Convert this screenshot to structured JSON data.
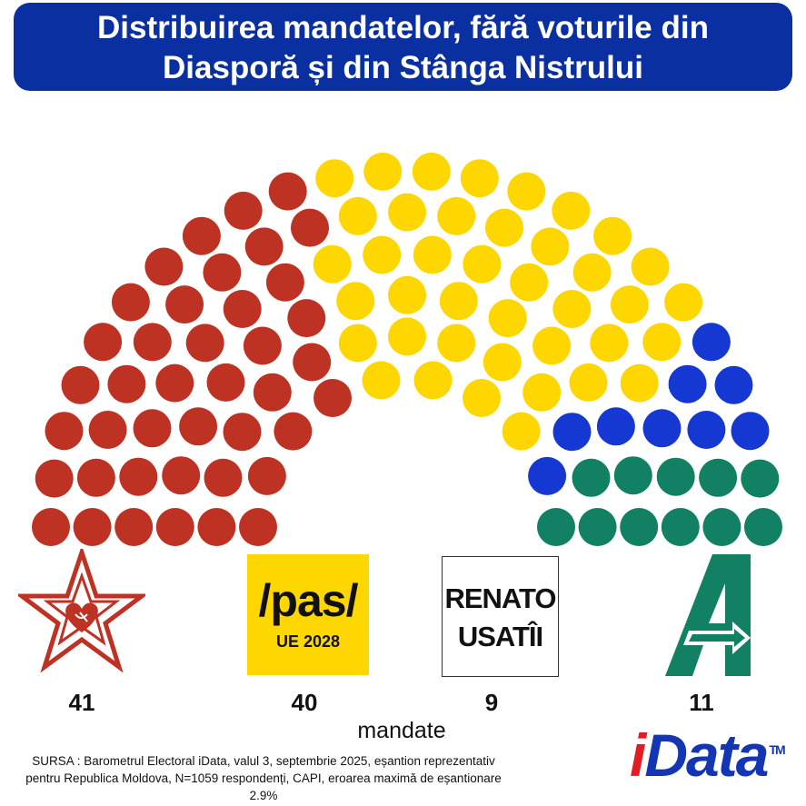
{
  "header": {
    "title_line1": "Distribuirea mandatelor, fără voturile din",
    "title_line2": "Diasporă și din Stânga Nistrului"
  },
  "chart_data": {
    "type": "hemicycle",
    "title": "Distribuirea mandatelor, fără voturile din Diasporă și din Stânga Nistrului",
    "unit_label": "mandate",
    "total_seats": 101,
    "series": [
      {
        "logo": "red-star-logo",
        "seats": 41,
        "label": "41",
        "color": "#be3224"
      },
      {
        "logo": "pas-ue-2028-logo",
        "seats": 40,
        "label": "40",
        "color": "#ffd700"
      },
      {
        "logo": "renato-usatii-logo",
        "seats": 9,
        "label": "9",
        "color": "#1538d3"
      },
      {
        "logo": "alternativa-logo",
        "seats": 11,
        "label": "11",
        "color": "#128063"
      }
    ]
  },
  "logos": {
    "pas_main": "/pas/",
    "pas_sub": "UE 2028",
    "renato_line1": "RENATO",
    "renato_line2": "USATÎI"
  },
  "footer": {
    "source": "SURSA : Barometrul Electoral iData, valul 3, septembrie 2025, eșantion reprezentativ pentru Republica  Moldova, N=1059 respondenți, CAPI, eroarea maximă de eșantionare 2.9%",
    "brand_i": "i",
    "brand_rest": "Data",
    "brand_tm": "TM"
  }
}
